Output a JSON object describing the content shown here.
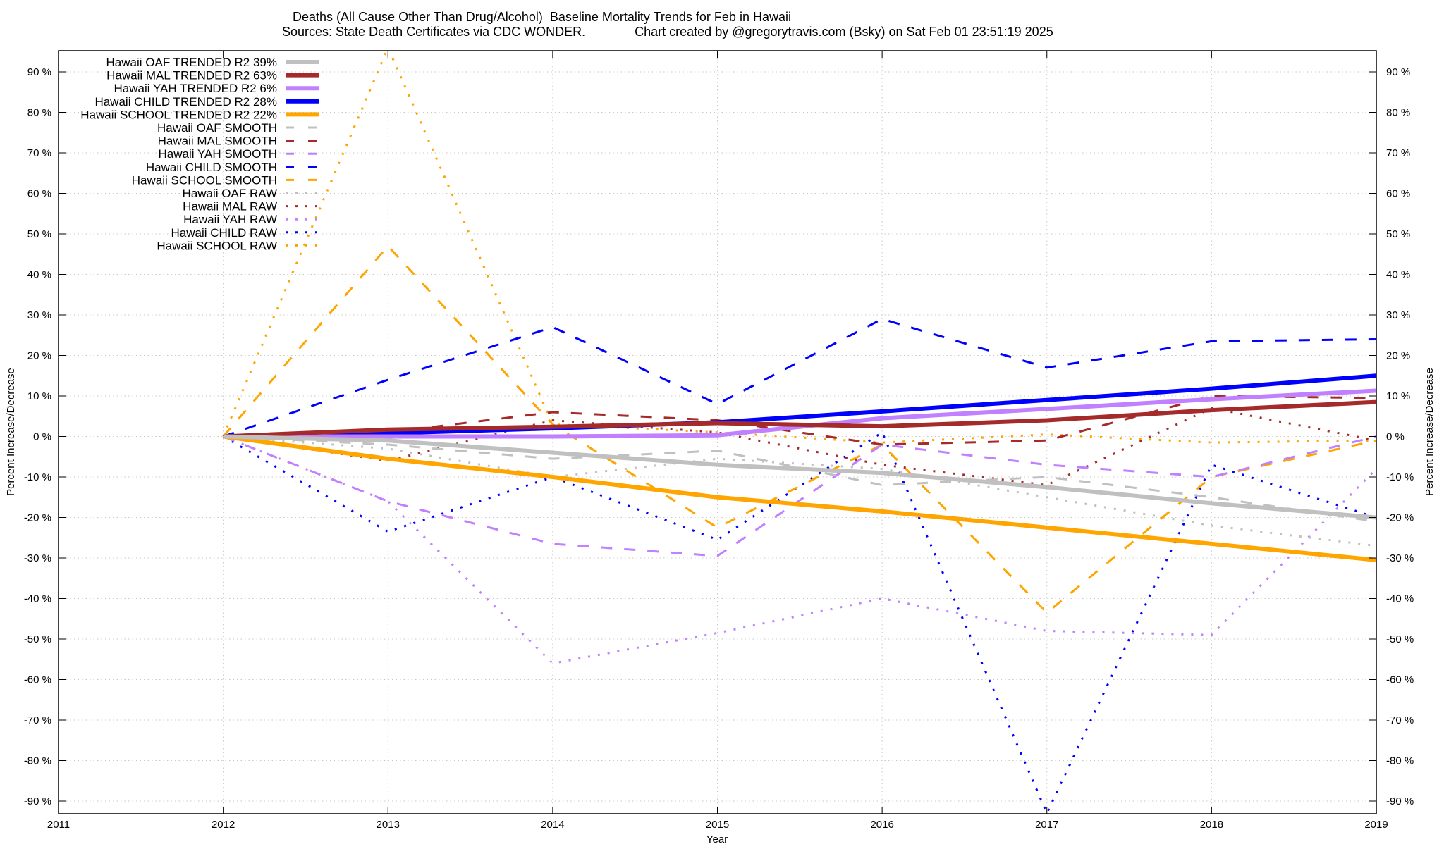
{
  "chart_data": {
    "type": "line",
    "title": "Deaths (All Cause Other Than Drug/Alcohol)  Baseline Mortality Trends for Feb in Hawaii",
    "subtitle": "Sources: State Death Certificates via CDC WONDER.              Chart created by @gregorytravis.com (Bsky) on Sat Feb 01 23:51:19 2025",
    "xlabel": "Year",
    "ylabel": "Percent Increase/Decrease",
    "y2label": "Percent Increase/Decrease",
    "xlim": [
      2011,
      2019
    ],
    "ylim": [
      -93,
      95
    ],
    "x_ticks": [
      "2011",
      "2012",
      "2013",
      "2014",
      "2015",
      "2016",
      "2017",
      "2018",
      "2019"
    ],
    "y_ticks": [
      "90 %",
      "80 %",
      "70 %",
      "60 %",
      "50 %",
      "40 %",
      "30 %",
      "20 %",
      "10 %",
      "0 %",
      "-10 %",
      "-20 %",
      "-30 %",
      "-40 %",
      "-50 %",
      "-60 %",
      "-70 %",
      "-80 %",
      "-90 %"
    ],
    "y_tick_values": [
      90,
      80,
      70,
      60,
      50,
      40,
      30,
      20,
      10,
      0,
      -10,
      -20,
      -30,
      -40,
      -50,
      -60,
      -70,
      -80,
      -90
    ],
    "grid": true,
    "legend_position": "top-left",
    "x": [
      2012,
      2013,
      2014,
      2015,
      2016,
      2017,
      2018,
      2019
    ],
    "series": [
      {
        "name": "Hawaii OAF TRENDED R2  39%",
        "style": "trended",
        "color": "#c0c0c0",
        "values": [
          0,
          -1,
          -4,
          -7,
          -9,
          -12.5,
          -16.5,
          -20
        ]
      },
      {
        "name": "Hawaii MAL TRENDED R2  63%",
        "style": "trended",
        "color": "#a52a2a",
        "values": [
          0,
          1.7,
          2.4,
          3.3,
          2.5,
          4,
          6.5,
          8.5
        ]
      },
      {
        "name": "Hawaii YAH TRENDED R2   6%",
        "style": "trended",
        "color": "#c080ff",
        "values": [
          0,
          0,
          0,
          0.3,
          4.5,
          6.8,
          9.2,
          11.3
        ]
      },
      {
        "name": "Hawaii CHILD TRENDED R2  28%",
        "style": "trended",
        "color": "#0000ff",
        "values": [
          0,
          0.8,
          2,
          3.5,
          6.2,
          9,
          11.8,
          15
        ]
      },
      {
        "name": "Hawaii SCHOOL TRENDED R2  22%",
        "style": "trended",
        "color": "#ffa500",
        "values": [
          0,
          -5.5,
          -10,
          -15,
          -18.5,
          -22.5,
          -26.5,
          -30.5
        ]
      },
      {
        "name": "Hawaii OAF SMOOTH",
        "style": "smooth",
        "color": "#c0c0c0",
        "values": [
          0,
          -2,
          -5.5,
          -3.5,
          -12,
          -10,
          -15,
          -21
        ]
      },
      {
        "name": "Hawaii MAL SMOOTH",
        "style": "smooth",
        "color": "#a52a2a",
        "values": [
          0,
          1,
          6,
          4,
          -2,
          -1,
          10,
          9.5
        ]
      },
      {
        "name": "Hawaii YAH SMOOTH",
        "style": "smooth",
        "color": "#c080ff",
        "values": [
          0,
          -16,
          -26.5,
          -29.5,
          -2,
          -7,
          -10,
          0
        ]
      },
      {
        "name": "Hawaii CHILD SMOOTH",
        "style": "smooth",
        "color": "#0000ff",
        "values": [
          0,
          14,
          27,
          8,
          29,
          17,
          23.5,
          24
        ]
      },
      {
        "name": "Hawaii SCHOOL SMOOTH",
        "style": "smooth",
        "color": "#ffa500",
        "values": [
          0,
          47,
          3,
          -22.5,
          -2,
          -43.5,
          -10,
          -1
        ]
      },
      {
        "name": "Hawaii OAF RAW",
        "style": "raw",
        "color": "#c0c0c0",
        "values": [
          0,
          -3,
          -10,
          -5.5,
          -8,
          -15,
          -22,
          -27
        ]
      },
      {
        "name": "Hawaii MAL RAW",
        "style": "raw",
        "color": "#a52a2a",
        "values": [
          0,
          -6,
          4,
          1,
          -7,
          -12,
          7,
          -1
        ]
      },
      {
        "name": "Hawaii YAH RAW",
        "style": "raw",
        "color": "#c080ff",
        "values": [
          0,
          -16,
          -56,
          -48.5,
          -40,
          -48,
          -49,
          -8
        ]
      },
      {
        "name": "Hawaii CHILD RAW",
        "style": "raw",
        "color": "#0000ff",
        "values": [
          0,
          -23.5,
          -10,
          -25.5,
          1,
          -93,
          -7,
          -20
        ]
      },
      {
        "name": "Hawaii SCHOOL RAW",
        "style": "raw",
        "color": "#ffa500",
        "values": [
          0,
          96,
          3,
          1,
          -1.5,
          0.5,
          -1.5,
          -1
        ]
      }
    ]
  }
}
